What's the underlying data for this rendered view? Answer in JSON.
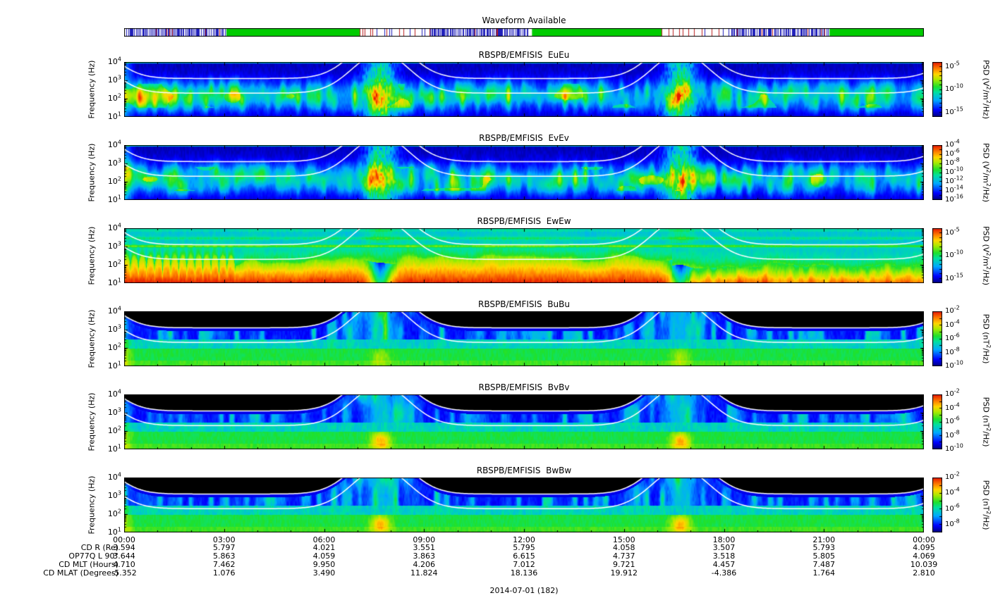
{
  "page": {
    "date_label": "2014-07-01 (182)"
  },
  "waveform": {
    "title": "Waveform Available",
    "segments": [
      {
        "style": "dense",
        "start": 0.0,
        "end": 0.128
      },
      {
        "style": "green",
        "start": 0.128,
        "end": 0.295
      },
      {
        "style": "sparse",
        "start": 0.295,
        "end": 0.383
      },
      {
        "style": "dense",
        "start": 0.383,
        "end": 0.505
      },
      {
        "style": "green",
        "start": 0.51,
        "end": 0.672
      },
      {
        "style": "sparse",
        "start": 0.672,
        "end": 0.76
      },
      {
        "style": "dense",
        "start": 0.76,
        "end": 0.882
      },
      {
        "style": "green",
        "start": 0.882,
        "end": 1.0
      }
    ],
    "colors": {
      "green": "#00cc00",
      "blue": "#2020bb",
      "red": "#bb2020"
    }
  },
  "chart_data": {
    "type": "heatmap",
    "x_range_hours": [
      0,
      24
    ],
    "x_ticks": [
      "00:00",
      "03:00",
      "06:00",
      "09:00",
      "12:00",
      "15:00",
      "18:00",
      "21:00",
      "00:00"
    ],
    "y_label": "Frequency (Hz)",
    "y_scale": "log",
    "y_range_hz": [
      10,
      10000
    ],
    "y_ticks": [
      "10^4",
      "10^3",
      "10^2",
      "10^1"
    ],
    "overlay_curves": {
      "color": "#ffffff",
      "description": "White electron-cyclotron-frequency model lines (two parallel curves ~0.8 decade apart) peaking off-scale near perigee passes",
      "perigee_hours": [
        7.7,
        16.7
      ]
    },
    "panels": [
      {
        "id": "EuEu",
        "title": "RBSPB/EMFISIS  EuEu",
        "style": "E",
        "seed": 1,
        "blob": 0,
        "colorbar_label": "PSD (V^2/m^2/Hz)",
        "cb_range": [
          -4,
          -16
        ],
        "cb_ticks": [
          "10^-5",
          "10^-10",
          "10^-15"
        ]
      },
      {
        "id": "EvEv",
        "title": "RBSPB/EMFISIS  EvEv",
        "style": "E",
        "seed": 2,
        "blob": 0,
        "colorbar_label": "PSD (V^2/m^2/Hz)",
        "cb_range": [
          -4,
          -16
        ],
        "cb_ticks": [
          "10^-4",
          "10^-6",
          "10^-8",
          "10^-10",
          "10^-12",
          "10^-14",
          "10^-16"
        ]
      },
      {
        "id": "EwEw",
        "title": "RBSPB/EMFISIS  EwEw",
        "style": "Ew",
        "seed": 3,
        "blob": 0,
        "colorbar_label": "PSD (V^2/m^2/Hz)",
        "cb_range": [
          -4,
          -16
        ],
        "cb_ticks": [
          "10^-5",
          "10^-10",
          "10^-15"
        ]
      },
      {
        "id": "BuBu",
        "title": "RBSPB/EMFISIS  BuBu",
        "style": "B",
        "seed": 4,
        "blob": 0.15,
        "colorbar_label": "PSD (nT^2/Hz)",
        "cb_range": [
          -2,
          -10
        ],
        "cb_ticks": [
          "10^-2",
          "10^-4",
          "10^-6",
          "10^-8",
          "10^-10"
        ]
      },
      {
        "id": "BvBv",
        "title": "RBSPB/EMFISIS  BvBv",
        "style": "B",
        "seed": 5,
        "blob": 0.3,
        "colorbar_label": "PSD (nT^2/Hz)",
        "cb_range": [
          -2,
          -10
        ],
        "cb_ticks": [
          "10^-2",
          "10^-4",
          "10^-6",
          "10^-8",
          "10^-10"
        ]
      },
      {
        "id": "BwBw",
        "title": "RBSPB/EMFISIS  BwBw",
        "style": "B",
        "seed": 6,
        "blob": 0.3,
        "colorbar_label": "PSD (nT^2/Hz)",
        "cb_range": [
          -2,
          -9
        ],
        "cb_ticks": [
          "10^-2",
          "10^-4",
          "10^-6",
          "10^-8"
        ]
      }
    ],
    "ephemeris": {
      "rows": [
        {
          "label": "CD R (Re)",
          "values": [
            "3.594",
            "5.797",
            "4.021",
            "3.551",
            "5.795",
            "4.058",
            "3.507",
            "5.793",
            "4.095"
          ]
        },
        {
          "label": "OP77Q L 90°",
          "values": [
            "3.644",
            "5.863",
            "4.059",
            "3.863",
            "6.615",
            "4.737",
            "3.518",
            "5.805",
            "4.069"
          ]
        },
        {
          "label": "CD MLT (Hours)",
          "values": [
            "4.710",
            "7.462",
            "9.950",
            "4.206",
            "7.012",
            "9.721",
            "4.457",
            "7.487",
            "10.039"
          ]
        },
        {
          "label": "CD MLAT (Degrees)",
          "values": [
            "-5.352",
            "1.076",
            "3.490",
            "11.824",
            "18.136",
            "19.912",
            "-4.386",
            "1.764",
            "2.810"
          ]
        }
      ]
    }
  }
}
